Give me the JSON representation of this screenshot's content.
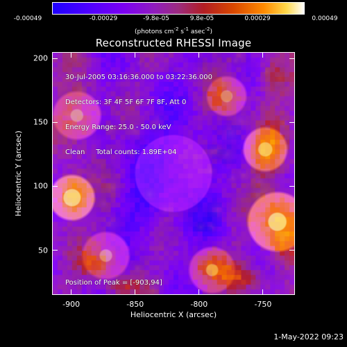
{
  "colorbar": {
    "ticks": [
      "-0.00049",
      "-0.00029",
      "-9.8e-05",
      "9.8e-05",
      "0.00029",
      "0.00049"
    ],
    "unit_prefix": "(photons cm",
    "unit_exp1": "-2",
    "unit_middle": " s",
    "unit_exp2": "-1",
    "unit_suffix_a": " asec",
    "unit_exp3": "-2",
    "unit_suffix_b": ")"
  },
  "chart_data": {
    "type": "heatmap",
    "title": "Reconstructed RHESSI Image",
    "xlabel": "Heliocentric X (arcsec)",
    "ylabel": "Heliocentric Y (arcsec)",
    "xlim": [
      -915,
      -725
    ],
    "ylim": [
      15,
      205
    ],
    "x_ticks": [
      -900,
      -850,
      -800,
      -750
    ],
    "y_ticks": [
      50,
      100,
      150,
      200
    ],
    "colorbar_range": [
      -0.00049,
      0.00049
    ],
    "peak_position": [
      -903,
      94
    ]
  },
  "overlay": {
    "line1": "30-Jul-2005 03:16:36.000 to 03:22:36.000",
    "line2": "Detectors: 3F 4F 5F 6F 7F 8F, Att 0",
    "line3": "Energy Range: 25.0 - 50.0 keV",
    "line4": "Clean     Total counts: 1.89E+04",
    "peak": "Position of Peak = [-903,94]"
  },
  "footer": {
    "timestamp": "1-May-2022 09:23"
  }
}
